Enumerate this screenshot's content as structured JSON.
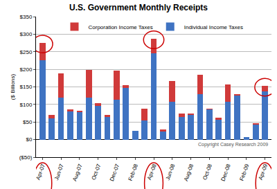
{
  "chart_data": {
    "type": "bar",
    "title": "U.S. Government Monthly Receipts",
    "y_label": "($ Billions)",
    "categories": [
      "Apr-07",
      null,
      "Jun-07",
      null,
      "Aug-07",
      null,
      "Oct-07",
      null,
      "Dec-07",
      null,
      "Feb-08",
      null,
      "Apr-08",
      null,
      "Jun-08",
      null,
      "Aug-08",
      null,
      "Oct-08",
      null,
      "Dec-08",
      null,
      "Feb-09",
      null,
      "Apr-09"
    ],
    "series": [
      {
        "name": "Individual Income Taxes",
        "color": "#3f73c2",
        "values": [
          225,
          60,
          120,
          80,
          78,
          120,
          95,
          65,
          113,
          148,
          25,
          55,
          245,
          22,
          108,
          65,
          70,
          130,
          85,
          57,
          108,
          125,
          8,
          42,
          137
        ]
      },
      {
        "name": "Corporation Income Taxes",
        "color": "#d03a3a",
        "values": [
          50,
          10,
          68,
          5,
          5,
          78,
          8,
          5,
          83,
          7,
          0,
          33,
          42,
          6,
          58,
          10,
          5,
          55,
          2,
          5,
          48,
          5,
          0,
          5,
          15
        ]
      }
    ],
    "stacked": true,
    "legend": "top",
    "grid": true,
    "ylim": [
      -50,
      350
    ],
    "yticks": [
      {
        "value": -50,
        "label": "($50)"
      },
      {
        "value": 0,
        "label": "$0"
      },
      {
        "value": 50,
        "label": "$50"
      },
      {
        "value": 100,
        "label": "$100"
      },
      {
        "value": 150,
        "label": "$150"
      },
      {
        "value": 200,
        "label": "$200"
      },
      {
        "value": 250,
        "label": "$250"
      },
      {
        "value": 300,
        "label": "$300"
      },
      {
        "value": 350,
        "label": "$350"
      }
    ],
    "annotations": [
      {
        "text": "Copyright Casey Research 2009"
      }
    ]
  }
}
